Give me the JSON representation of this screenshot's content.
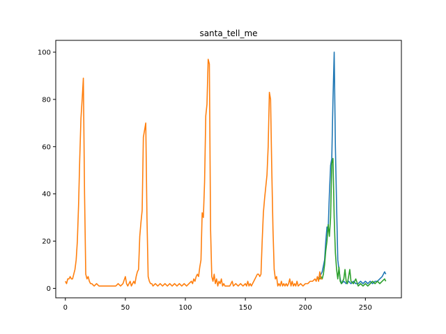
{
  "chart_data": {
    "type": "line",
    "title": "santa_tell_me",
    "xlabel": "",
    "ylabel": "",
    "xlim": [
      -8,
      280
    ],
    "ylim": [
      -4,
      105
    ],
    "xticks": [
      0,
      50,
      100,
      150,
      200,
      250
    ],
    "yticks": [
      0,
      20,
      40,
      60,
      80,
      100
    ],
    "grid": false,
    "legend": "none",
    "series": [
      {
        "color": "#1f77b4",
        "points": [
          [
            210,
            4
          ],
          [
            212,
            5
          ],
          [
            214,
            7
          ],
          [
            216,
            12
          ],
          [
            217,
            20
          ],
          [
            218,
            26
          ],
          [
            219,
            25
          ],
          [
            220,
            40
          ],
          [
            221,
            52
          ],
          [
            222,
            55
          ],
          [
            223,
            80
          ],
          [
            224,
            100
          ],
          [
            225,
            60
          ],
          [
            226,
            35
          ],
          [
            227,
            12
          ],
          [
            228,
            8
          ],
          [
            229,
            4
          ],
          [
            230,
            2
          ],
          [
            232,
            3
          ],
          [
            234,
            2
          ],
          [
            236,
            3
          ],
          [
            238,
            2
          ],
          [
            240,
            3
          ],
          [
            242,
            2
          ],
          [
            244,
            2
          ],
          [
            246,
            3
          ],
          [
            248,
            2
          ],
          [
            250,
            3
          ],
          [
            252,
            2
          ],
          [
            254,
            3
          ],
          [
            256,
            2
          ],
          [
            258,
            3
          ],
          [
            260,
            3
          ],
          [
            262,
            4
          ],
          [
            264,
            5
          ],
          [
            266,
            7
          ],
          [
            267,
            6
          ]
        ]
      },
      {
        "color": "#2ca02c",
        "points": [
          [
            210,
            4
          ],
          [
            212,
            4
          ],
          [
            213,
            5
          ],
          [
            214,
            4
          ],
          [
            215,
            6
          ],
          [
            216,
            10
          ],
          [
            217,
            16
          ],
          [
            218,
            20
          ],
          [
            219,
            27
          ],
          [
            220,
            22
          ],
          [
            221,
            30
          ],
          [
            222,
            53
          ],
          [
            223,
            55
          ],
          [
            224,
            30
          ],
          [
            225,
            15
          ],
          [
            226,
            8
          ],
          [
            227,
            4
          ],
          [
            228,
            9
          ],
          [
            229,
            3
          ],
          [
            230,
            2
          ],
          [
            232,
            4
          ],
          [
            233,
            8
          ],
          [
            234,
            3
          ],
          [
            235,
            2
          ],
          [
            236,
            5
          ],
          [
            237,
            8
          ],
          [
            238,
            3
          ],
          [
            240,
            2
          ],
          [
            242,
            4
          ],
          [
            244,
            1
          ],
          [
            246,
            2
          ],
          [
            248,
            1
          ],
          [
            250,
            2
          ],
          [
            252,
            1
          ],
          [
            254,
            2
          ],
          [
            256,
            3
          ],
          [
            258,
            2
          ],
          [
            260,
            3
          ],
          [
            262,
            2
          ],
          [
            264,
            3
          ],
          [
            266,
            4
          ],
          [
            267,
            3
          ]
        ]
      },
      {
        "color": "#ff7f0e",
        "points": [
          [
            0,
            3
          ],
          [
            1,
            2
          ],
          [
            2,
            4
          ],
          [
            3,
            4
          ],
          [
            4,
            5
          ],
          [
            5,
            4
          ],
          [
            6,
            4
          ],
          [
            7,
            6
          ],
          [
            8,
            8
          ],
          [
            9,
            12
          ],
          [
            10,
            20
          ],
          [
            11,
            35
          ],
          [
            12,
            55
          ],
          [
            13,
            72
          ],
          [
            14,
            80
          ],
          [
            15,
            89
          ],
          [
            16,
            40
          ],
          [
            17,
            6
          ],
          [
            18,
            4
          ],
          [
            19,
            5
          ],
          [
            20,
            3
          ],
          [
            21,
            2
          ],
          [
            22,
            2
          ],
          [
            24,
            1
          ],
          [
            26,
            2
          ],
          [
            28,
            1
          ],
          [
            30,
            1
          ],
          [
            32,
            1
          ],
          [
            34,
            1
          ],
          [
            36,
            1
          ],
          [
            38,
            1
          ],
          [
            40,
            1
          ],
          [
            42,
            1
          ],
          [
            44,
            2
          ],
          [
            46,
            1
          ],
          [
            48,
            2
          ],
          [
            50,
            5
          ],
          [
            51,
            2
          ],
          [
            52,
            1
          ],
          [
            53,
            2
          ],
          [
            54,
            3
          ],
          [
            55,
            1
          ],
          [
            56,
            2
          ],
          [
            57,
            3
          ],
          [
            58,
            2
          ],
          [
            59,
            5
          ],
          [
            60,
            7
          ],
          [
            61,
            8
          ],
          [
            62,
            22
          ],
          [
            63,
            28
          ],
          [
            64,
            33
          ],
          [
            65,
            64
          ],
          [
            66,
            67
          ],
          [
            67,
            70
          ],
          [
            68,
            30
          ],
          [
            69,
            5
          ],
          [
            70,
            3
          ],
          [
            71,
            2
          ],
          [
            72,
            2
          ],
          [
            73,
            1
          ],
          [
            75,
            2
          ],
          [
            77,
            1
          ],
          [
            79,
            2
          ],
          [
            81,
            1
          ],
          [
            83,
            2
          ],
          [
            85,
            1
          ],
          [
            87,
            2
          ],
          [
            89,
            1
          ],
          [
            91,
            2
          ],
          [
            93,
            1
          ],
          [
            95,
            2
          ],
          [
            97,
            1
          ],
          [
            99,
            2
          ],
          [
            101,
            1
          ],
          [
            103,
            2
          ],
          [
            105,
            3
          ],
          [
            106,
            2
          ],
          [
            107,
            4
          ],
          [
            108,
            3
          ],
          [
            109,
            5
          ],
          [
            110,
            6
          ],
          [
            111,
            5
          ],
          [
            112,
            9
          ],
          [
            113,
            12
          ],
          [
            114,
            32
          ],
          [
            115,
            30
          ],
          [
            116,
            45
          ],
          [
            117,
            73
          ],
          [
            118,
            78
          ],
          [
            119,
            97
          ],
          [
            120,
            95
          ],
          [
            121,
            25
          ],
          [
            122,
            5
          ],
          [
            123,
            3
          ],
          [
            124,
            6
          ],
          [
            125,
            2
          ],
          [
            126,
            4
          ],
          [
            127,
            1
          ],
          [
            128,
            3
          ],
          [
            129,
            2
          ],
          [
            130,
            4
          ],
          [
            131,
            1
          ],
          [
            132,
            2
          ],
          [
            133,
            1
          ],
          [
            135,
            1
          ],
          [
            137,
            1
          ],
          [
            139,
            3
          ],
          [
            140,
            1
          ],
          [
            142,
            2
          ],
          [
            144,
            1
          ],
          [
            146,
            2
          ],
          [
            148,
            1
          ],
          [
            150,
            2
          ],
          [
            151,
            1
          ],
          [
            152,
            3
          ],
          [
            153,
            1
          ],
          [
            154,
            2
          ],
          [
            155,
            1
          ],
          [
            156,
            2
          ],
          [
            157,
            3
          ],
          [
            158,
            4
          ],
          [
            159,
            5
          ],
          [
            160,
            6
          ],
          [
            161,
            6
          ],
          [
            162,
            5
          ],
          [
            163,
            6
          ],
          [
            164,
            20
          ],
          [
            165,
            32
          ],
          [
            166,
            38
          ],
          [
            167,
            43
          ],
          [
            168,
            48
          ],
          [
            169,
            60
          ],
          [
            170,
            83
          ],
          [
            171,
            80
          ],
          [
            172,
            50
          ],
          [
            173,
            25
          ],
          [
            174,
            8
          ],
          [
            175,
            4
          ],
          [
            176,
            5
          ],
          [
            177,
            1
          ],
          [
            178,
            2
          ],
          [
            179,
            1
          ],
          [
            180,
            3
          ],
          [
            181,
            1
          ],
          [
            182,
            2
          ],
          [
            183,
            1
          ],
          [
            184,
            2
          ],
          [
            185,
            1
          ],
          [
            186,
            2
          ],
          [
            187,
            4
          ],
          [
            188,
            1
          ],
          [
            189,
            3
          ],
          [
            190,
            1
          ],
          [
            191,
            2
          ],
          [
            192,
            1
          ],
          [
            193,
            3
          ],
          [
            194,
            1
          ],
          [
            196,
            2
          ],
          [
            198,
            1
          ],
          [
            200,
            2
          ],
          [
            202,
            2
          ],
          [
            204,
            3
          ],
          [
            206,
            3
          ],
          [
            208,
            4
          ],
          [
            209,
            3
          ],
          [
            210,
            5
          ],
          [
            211,
            3
          ],
          [
            212,
            7
          ],
          [
            213,
            4
          ],
          [
            214,
            4
          ]
        ]
      }
    ]
  }
}
